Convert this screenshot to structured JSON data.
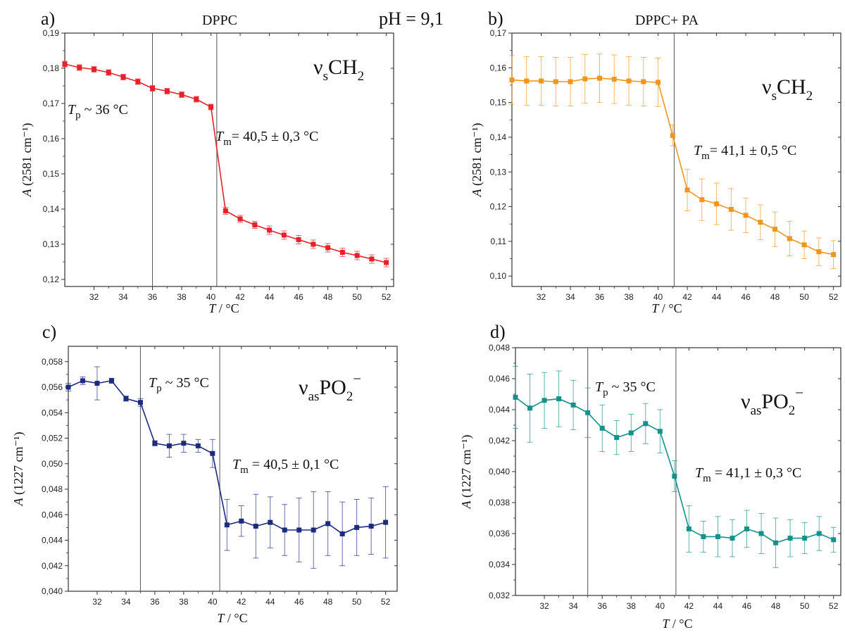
{
  "header": {
    "pH": "pH = 9,1"
  },
  "chart_data": [
    {
      "type": "line",
      "panel_letter": "a)",
      "title": "DPPC",
      "band_label": "CH",
      "band_prefix": "ν",
      "band_sub": "s",
      "band_sub2": "2",
      "band_sup": "",
      "xlabel": "T / °C",
      "ylabel": "A (2581 cm⁻¹)",
      "xlim": [
        30,
        52.5
      ],
      "ylim": [
        0.118,
        0.19
      ],
      "xticks": [
        32,
        34,
        36,
        38,
        40,
        42,
        44,
        46,
        48,
        50,
        52
      ],
      "xtick_labels": [
        "32",
        "34",
        "36",
        "38",
        "40",
        "42",
        "44",
        "46",
        "48",
        "50",
        "52"
      ],
      "yticks": [
        0.12,
        0.13,
        0.14,
        0.15,
        0.16,
        0.17,
        0.18,
        0.19
      ],
      "ytick_labels": [
        "0,12",
        "0,13",
        "0,14",
        "0,15",
        "0,16",
        "0,17",
        "0,18",
        "0,19"
      ],
      "vlines": [
        36,
        40.4
      ],
      "color": "#e8202a",
      "series": [
        {
          "x": [
            30,
            31,
            32,
            33,
            34,
            35,
            36,
            37,
            38,
            39,
            40,
            41,
            42,
            43,
            44,
            45,
            46,
            47,
            48,
            49,
            50,
            51,
            52
          ],
          "values": [
            0.1812,
            0.1802,
            0.1797,
            0.1788,
            0.1775,
            0.1762,
            0.1743,
            0.1735,
            0.1725,
            0.1712,
            0.169,
            0.1395,
            0.1372,
            0.1355,
            0.134,
            0.1326,
            0.1313,
            0.13,
            0.129,
            0.1277,
            0.1268,
            0.1258,
            0.1248
          ],
          "errors": [
            0.0008,
            0.0008,
            0.0008,
            0.0008,
            0.0008,
            0.0008,
            0.0008,
            0.0008,
            0.0008,
            0.0008,
            0.0008,
            0.001,
            0.001,
            0.001,
            0.0012,
            0.0012,
            0.0012,
            0.0012,
            0.0012,
            0.0012,
            0.0012,
            0.0012,
            0.0012
          ]
        }
      ],
      "annotations": [
        {
          "prefix": "T",
          "sub": "p",
          "text": " ~ 36 °C",
          "color": "#e8202a"
        },
        {
          "prefix": "T",
          "sub": "m",
          "text": "= 40,5 ± 0,3 °C",
          "color": "#f0961e"
        }
      ]
    },
    {
      "type": "line",
      "panel_letter": "b)",
      "title": "DPPC+ PA",
      "band_label": "CH",
      "band_prefix": "ν",
      "band_sub": "s",
      "band_sub2": "2",
      "band_sup": "",
      "xlabel": "T / °C",
      "ylabel": "A (2581 cm⁻¹)",
      "xlim": [
        30,
        52.5
      ],
      "ylim": [
        0.097,
        0.17
      ],
      "xticks": [
        32,
        34,
        36,
        38,
        40,
        42,
        44,
        46,
        48,
        50,
        52
      ],
      "xtick_labels": [
        "32",
        "34",
        "36",
        "38",
        "40",
        "42",
        "44",
        "46",
        "48",
        "50",
        "52"
      ],
      "yticks": [
        0.1,
        0.11,
        0.12,
        0.13,
        0.14,
        0.15,
        0.16,
        0.17
      ],
      "ytick_labels": [
        "0,10",
        "0,11",
        "0,12",
        "0,13",
        "0,14",
        "0,15",
        "0,16",
        "0,17"
      ],
      "vlines": [
        41.1
      ],
      "color": "#f0961e",
      "series": [
        {
          "x": [
            30,
            31,
            32,
            33,
            34,
            35,
            36,
            37,
            38,
            39,
            40,
            41,
            42,
            43,
            44,
            45,
            46,
            47,
            48,
            49,
            50,
            51,
            52
          ],
          "values": [
            0.1565,
            0.1562,
            0.1562,
            0.156,
            0.156,
            0.1568,
            0.157,
            0.1567,
            0.1562,
            0.156,
            0.1558,
            0.1405,
            0.1248,
            0.122,
            0.1208,
            0.1192,
            0.1175,
            0.1155,
            0.1135,
            0.1108,
            0.109,
            0.107,
            0.1062
          ],
          "errors": [
            0.007,
            0.007,
            0.007,
            0.007,
            0.007,
            0.007,
            0.007,
            0.007,
            0.007,
            0.007,
            0.007,
            0.003,
            0.006,
            0.006,
            0.006,
            0.006,
            0.005,
            0.005,
            0.005,
            0.005,
            0.004,
            0.004,
            0.004
          ]
        }
      ],
      "annotations": [
        {
          "prefix": "T",
          "sub": "m",
          "text": "= 41,1 ± 0,5 °C",
          "color": "#f0961e"
        }
      ]
    },
    {
      "type": "line",
      "panel_letter": "c)",
      "title": "",
      "band_label": "PO",
      "band_prefix": "ν",
      "band_sub": "as",
      "band_sub2": "2",
      "band_sup": "−",
      "xlabel": "T / °C",
      "ylabel": "A (1227 cm⁻¹)",
      "xlim": [
        30,
        52.8
      ],
      "ylim": [
        0.04,
        0.0592
      ],
      "xticks": [
        32,
        34,
        36,
        38,
        40,
        42,
        44,
        46,
        48,
        50,
        52
      ],
      "xtick_labels": [
        "32",
        "34",
        "36",
        "38",
        "40",
        "42",
        "44",
        "46",
        "48",
        "50",
        "52"
      ],
      "yticks": [
        0.04,
        0.042,
        0.044,
        0.046,
        0.048,
        0.05,
        0.052,
        0.054,
        0.056,
        0.058
      ],
      "ytick_labels": [
        "0,040",
        "0,042",
        "0,044",
        "0,046",
        "0,048",
        "0,050",
        "0,052",
        "0,054",
        "0,056",
        "0,058"
      ],
      "vlines": [
        35,
        40.5
      ],
      "color": "#1c2a80",
      "series": [
        {
          "x": [
            30,
            31,
            32,
            33,
            34,
            35,
            36,
            37,
            38,
            39,
            40,
            41,
            42,
            43,
            44,
            45,
            46,
            47,
            48,
            49,
            50,
            51,
            52
          ],
          "values": [
            0.056,
            0.0565,
            0.0563,
            0.0565,
            0.0551,
            0.0548,
            0.0516,
            0.0514,
            0.0516,
            0.0514,
            0.0508,
            0.0452,
            0.0455,
            0.0451,
            0.0454,
            0.0448,
            0.0448,
            0.0448,
            0.0453,
            0.0445,
            0.045,
            0.0451,
            0.0454
          ],
          "errors": [
            0.0003,
            0.0003,
            0.0013,
            0.0002,
            0.0002,
            0.0003,
            0.0002,
            0.0009,
            0.0007,
            0.0005,
            0.0011,
            0.002,
            0.0012,
            0.0025,
            0.002,
            0.002,
            0.0025,
            0.003,
            0.0025,
            0.0025,
            0.0022,
            0.0022,
            0.0028
          ]
        }
      ],
      "annotations": [
        {
          "prefix": "T",
          "sub": "p",
          "text": " ~ 35 °C",
          "color": "#1c2a80"
        },
        {
          "prefix": "T",
          "sub": "m",
          "text": " = 40,5 ± 0,1 °C",
          "color": "#14918a"
        }
      ]
    },
    {
      "type": "line",
      "panel_letter": "d)",
      "title": "",
      "band_label": "PO",
      "band_prefix": "ν",
      "band_sub": "as",
      "band_sub2": "2",
      "band_sup": "−",
      "xlabel": "T / °C",
      "ylabel": "A (1227 cm⁻¹)",
      "xlim": [
        30,
        52.5
      ],
      "ylim": [
        0.032,
        0.048
      ],
      "xticks": [
        32,
        34,
        36,
        38,
        40,
        42,
        44,
        46,
        48,
        50,
        52
      ],
      "xtick_labels": [
        "32",
        "34",
        "36",
        "38",
        "40",
        "42",
        "44",
        "46",
        "48",
        "50",
        "52"
      ],
      "yticks": [
        0.032,
        0.034,
        0.036,
        0.038,
        0.04,
        0.042,
        0.044,
        0.046,
        0.048
      ],
      "ytick_labels": [
        "0,032",
        "0,034",
        "0,036",
        "0,038",
        "0,040",
        "0,042",
        "0,044",
        "0,046",
        "0,048"
      ],
      "vlines": [
        35,
        41.1
      ],
      "color": "#14918a",
      "series": [
        {
          "x": [
            30,
            31,
            32,
            33,
            34,
            35,
            36,
            37,
            38,
            39,
            40,
            41,
            42,
            43,
            44,
            45,
            46,
            47,
            48,
            49,
            50,
            51,
            52
          ],
          "values": [
            0.0448,
            0.0441,
            0.0446,
            0.0447,
            0.0443,
            0.0438,
            0.0428,
            0.0422,
            0.0425,
            0.0431,
            0.0426,
            0.0397,
            0.0363,
            0.0358,
            0.0358,
            0.0357,
            0.0363,
            0.036,
            0.0354,
            0.0357,
            0.0357,
            0.036,
            0.0356
          ],
          "errors": [
            0.002,
            0.0022,
            0.0018,
            0.0018,
            0.0016,
            0.0016,
            0.0015,
            0.0011,
            0.0012,
            0.0013,
            0.0014,
            0.001,
            0.0015,
            0.001,
            0.0013,
            0.0012,
            0.0012,
            0.0013,
            0.0016,
            0.0012,
            0.001,
            0.0011,
            0.0008
          ]
        }
      ],
      "annotations": [
        {
          "prefix": "T",
          "sub": "p",
          "text": " ~ 35 °C",
          "color": "#1c2a80"
        },
        {
          "prefix": "T",
          "sub": "m",
          "text": " = 41,1 ± 0,3 °C",
          "color": "#14918a"
        }
      ]
    }
  ]
}
